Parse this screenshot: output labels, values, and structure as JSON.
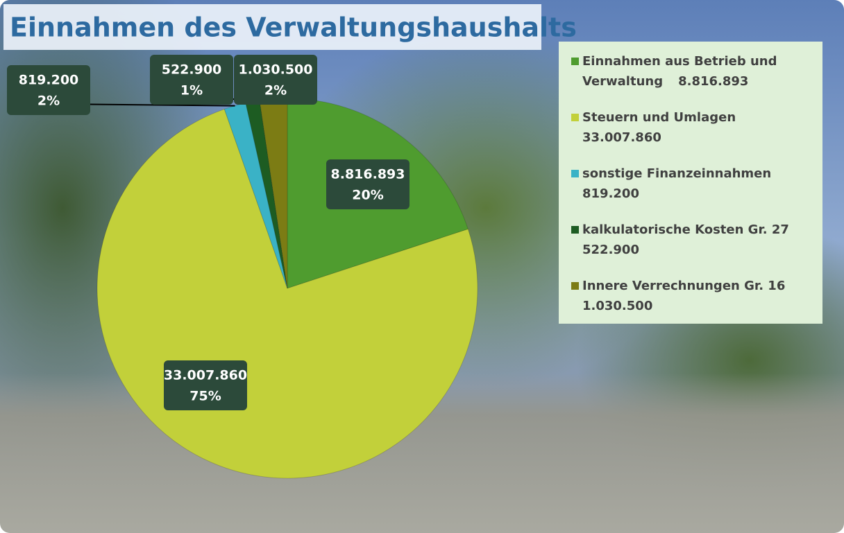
{
  "chart_data": {
    "type": "pie",
    "title": "Einnahmen des Verwaltungshaushalts",
    "categories": [
      "Einnahmen aus Betrieb und Verwaltung",
      "Steuern und Umlagen",
      "sonstige Finanzeinnahmen",
      "kalkulatorische Kosten Gr. 27",
      "Innere Verrechnungen Gr. 16"
    ],
    "values": [
      8816893,
      33007860,
      819200,
      522900,
      1030500
    ],
    "value_labels": [
      "8.816.893",
      "33.007.860",
      "819.200",
      "522.900",
      "1.030.500"
    ],
    "percent_labels": [
      "20%",
      "75%",
      "2%",
      "1%",
      "2%"
    ],
    "colors": [
      "#4f9c2f",
      "#c2d03a",
      "#3ab2c6",
      "#1d5c22",
      "#7c7c14"
    ],
    "legend": "right"
  }
}
